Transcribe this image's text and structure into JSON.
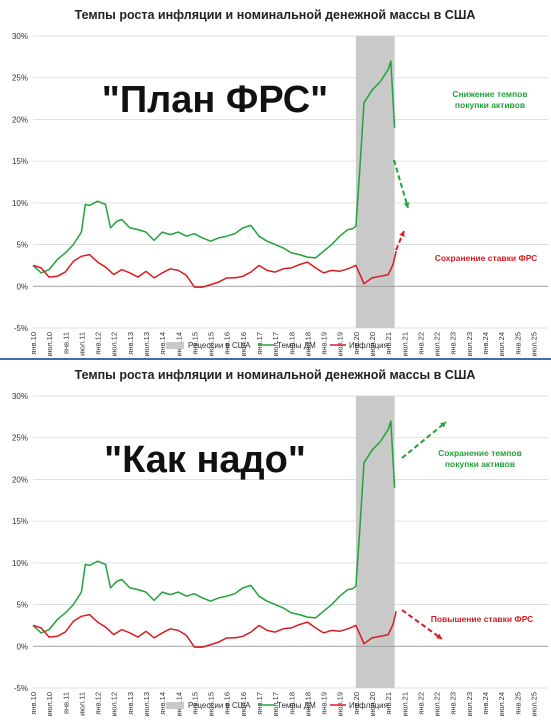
{
  "chart_data": [
    {
      "type": "line",
      "title": "Темпы роста инфляции и номинальной денежной массы в США",
      "overlay_title": "\"План ФРС\"",
      "ylim": [
        -5,
        30
      ],
      "y_ticks": [
        "-5%",
        "0%",
        "5%",
        "10%",
        "15%",
        "20%",
        "25%",
        "30%"
      ],
      "x_ticks": [
        "янв.10",
        "июл.10",
        "янв.11",
        "июл.11",
        "янв.12",
        "июл.12",
        "янв.13",
        "июл.13",
        "янв.14",
        "июл.14",
        "янв.15",
        "июл.15",
        "янв.16",
        "июл.16",
        "янв.17",
        "июл.17",
        "янв.18",
        "июл.18",
        "янв.19",
        "июл.19",
        "янв.20",
        "июл.20",
        "янв.21",
        "июл.21",
        "янв.22",
        "июл.22",
        "янв.23",
        "июл.23",
        "янв.24",
        "июл.24",
        "янв.25",
        "июл.25"
      ],
      "legend": [
        "Рецессии в США",
        "Темпы ДМ",
        "Инфляция"
      ],
      "legend_position": "bottom",
      "recession": {
        "start": 2020.0,
        "end": 2021.2
      },
      "series": [
        {
          "name": "Темпы ДМ",
          "color": "#22a33a",
          "points": [
            [
              2010.0,
              2.5
            ],
            [
              2010.25,
              1.6
            ],
            [
              2010.5,
              2.0
            ],
            [
              2010.75,
              3.2
            ],
            [
              2011.0,
              4.0
            ],
            [
              2011.25,
              5.0
            ],
            [
              2011.5,
              6.5
            ],
            [
              2011.62,
              9.8
            ],
            [
              2011.75,
              9.7
            ],
            [
              2012.0,
              10.2
            ],
            [
              2012.25,
              9.8
            ],
            [
              2012.4,
              7.0
            ],
            [
              2012.6,
              7.8
            ],
            [
              2012.75,
              8.0
            ],
            [
              2013.0,
              7.0
            ],
            [
              2013.25,
              6.8
            ],
            [
              2013.5,
              6.5
            ],
            [
              2013.75,
              5.5
            ],
            [
              2014.0,
              6.5
            ],
            [
              2014.25,
              6.2
            ],
            [
              2014.5,
              6.5
            ],
            [
              2014.75,
              6.0
            ],
            [
              2015.0,
              6.3
            ],
            [
              2015.25,
              5.8
            ],
            [
              2015.5,
              5.4
            ],
            [
              2015.75,
              5.8
            ],
            [
              2016.0,
              6.0
            ],
            [
              2016.25,
              6.3
            ],
            [
              2016.5,
              7.0
            ],
            [
              2016.75,
              7.3
            ],
            [
              2017.0,
              6.0
            ],
            [
              2017.25,
              5.4
            ],
            [
              2017.5,
              5.0
            ],
            [
              2017.75,
              4.6
            ],
            [
              2018.0,
              4.0
            ],
            [
              2018.25,
              3.8
            ],
            [
              2018.5,
              3.5
            ],
            [
              2018.75,
              3.4
            ],
            [
              2019.0,
              4.2
            ],
            [
              2019.25,
              5.0
            ],
            [
              2019.5,
              6.0
            ],
            [
              2019.75,
              6.8
            ],
            [
              2019.9,
              6.9
            ],
            [
              2020.0,
              7.2
            ],
            [
              2020.12,
              14.0
            ],
            [
              2020.25,
              22.0
            ],
            [
              2020.5,
              23.5
            ],
            [
              2020.75,
              24.5
            ],
            [
              2021.0,
              26.0
            ],
            [
              2021.08,
              27.0
            ],
            [
              2021.2,
              19.0
            ]
          ]
        },
        {
          "name": "Инфляция",
          "color": "#d91c22",
          "points": [
            [
              2010.0,
              2.5
            ],
            [
              2010.25,
              2.2
            ],
            [
              2010.5,
              1.1
            ],
            [
              2010.75,
              1.2
            ],
            [
              2011.0,
              1.7
            ],
            [
              2011.25,
              3.0
            ],
            [
              2011.5,
              3.6
            ],
            [
              2011.75,
              3.8
            ],
            [
              2012.0,
              2.9
            ],
            [
              2012.25,
              2.3
            ],
            [
              2012.5,
              1.4
            ],
            [
              2012.75,
              2.0
            ],
            [
              2013.0,
              1.6
            ],
            [
              2013.25,
              1.1
            ],
            [
              2013.5,
              1.8
            ],
            [
              2013.75,
              1.0
            ],
            [
              2014.0,
              1.6
            ],
            [
              2014.25,
              2.1
            ],
            [
              2014.5,
              1.9
            ],
            [
              2014.75,
              1.3
            ],
            [
              2015.0,
              -0.1
            ],
            [
              2015.25,
              -0.1
            ],
            [
              2015.5,
              0.2
            ],
            [
              2015.75,
              0.5
            ],
            [
              2016.0,
              1.0
            ],
            [
              2016.25,
              1.0
            ],
            [
              2016.5,
              1.2
            ],
            [
              2016.75,
              1.7
            ],
            [
              2017.0,
              2.5
            ],
            [
              2017.25,
              1.9
            ],
            [
              2017.5,
              1.7
            ],
            [
              2017.75,
              2.1
            ],
            [
              2018.0,
              2.2
            ],
            [
              2018.25,
              2.6
            ],
            [
              2018.5,
              2.9
            ],
            [
              2018.75,
              2.2
            ],
            [
              2019.0,
              1.6
            ],
            [
              2019.25,
              1.9
            ],
            [
              2019.5,
              1.8
            ],
            [
              2019.75,
              2.1
            ],
            [
              2020.0,
              2.5
            ],
            [
              2020.25,
              0.3
            ],
            [
              2020.5,
              1.0
            ],
            [
              2020.75,
              1.2
            ],
            [
              2021.0,
              1.4
            ],
            [
              2021.15,
              2.6
            ],
            [
              2021.25,
              4.2
            ]
          ]
        }
      ],
      "annotations": [
        {
          "text": "Снижение темпов покупки активов",
          "color": "#22a33a"
        },
        {
          "text": "Сохранение ставки ФРС",
          "color": "#d91c22"
        }
      ]
    },
    {
      "type": "line",
      "title": "Темпы роста инфляции и номинальной денежной массы в США",
      "overlay_title": "\"Как надо\"",
      "ylim": [
        -5,
        30
      ],
      "y_ticks": [
        "-5%",
        "0%",
        "5%",
        "10%",
        "15%",
        "20%",
        "25%",
        "30%"
      ],
      "x_ticks": [
        "янв.10",
        "июл.10",
        "янв.11",
        "июл.11",
        "янв.12",
        "июл.12",
        "янв.13",
        "июл.13",
        "янв.14",
        "июл.14",
        "янв.15",
        "июл.15",
        "янв.16",
        "июл.16",
        "янв.17",
        "июл.17",
        "янв.18",
        "июл.18",
        "янв.19",
        "июл.19",
        "янв.20",
        "июл.20",
        "янв.21",
        "июл.21",
        "янв.22",
        "июл.22",
        "янв.23",
        "июл.23",
        "янв.24",
        "июл.24",
        "янв.25",
        "июл.25"
      ],
      "legend": [
        "Рецессии в США",
        "Темпы ДМ",
        "Инфляция"
      ],
      "legend_position": "bottom",
      "recession": {
        "start": 2020.0,
        "end": 2021.2
      },
      "series": [
        {
          "name": "Темпы ДМ",
          "color": "#22a33a",
          "points": [
            [
              2010.0,
              2.5
            ],
            [
              2010.25,
              1.6
            ],
            [
              2010.5,
              2.0
            ],
            [
              2010.75,
              3.2
            ],
            [
              2011.0,
              4.0
            ],
            [
              2011.25,
              5.0
            ],
            [
              2011.5,
              6.5
            ],
            [
              2011.62,
              9.8
            ],
            [
              2011.75,
              9.7
            ],
            [
              2012.0,
              10.2
            ],
            [
              2012.25,
              9.8
            ],
            [
              2012.4,
              7.0
            ],
            [
              2012.6,
              7.8
            ],
            [
              2012.75,
              8.0
            ],
            [
              2013.0,
              7.0
            ],
            [
              2013.25,
              6.8
            ],
            [
              2013.5,
              6.5
            ],
            [
              2013.75,
              5.5
            ],
            [
              2014.0,
              6.5
            ],
            [
              2014.25,
              6.2
            ],
            [
              2014.5,
              6.5
            ],
            [
              2014.75,
              6.0
            ],
            [
              2015.0,
              6.3
            ],
            [
              2015.25,
              5.8
            ],
            [
              2015.5,
              5.4
            ],
            [
              2015.75,
              5.8
            ],
            [
              2016.0,
              6.0
            ],
            [
              2016.25,
              6.3
            ],
            [
              2016.5,
              7.0
            ],
            [
              2016.75,
              7.3
            ],
            [
              2017.0,
              6.0
            ],
            [
              2017.25,
              5.4
            ],
            [
              2017.5,
              5.0
            ],
            [
              2017.75,
              4.6
            ],
            [
              2018.0,
              4.0
            ],
            [
              2018.25,
              3.8
            ],
            [
              2018.5,
              3.5
            ],
            [
              2018.75,
              3.4
            ],
            [
              2019.0,
              4.2
            ],
            [
              2019.25,
              5.0
            ],
            [
              2019.5,
              6.0
            ],
            [
              2019.75,
              6.8
            ],
            [
              2019.9,
              6.9
            ],
            [
              2020.0,
              7.2
            ],
            [
              2020.12,
              14.0
            ],
            [
              2020.25,
              22.0
            ],
            [
              2020.5,
              23.5
            ],
            [
              2020.75,
              24.5
            ],
            [
              2021.0,
              26.0
            ],
            [
              2021.08,
              27.0
            ],
            [
              2021.2,
              19.0
            ]
          ]
        },
        {
          "name": "Инфляция",
          "color": "#d91c22",
          "points": [
            [
              2010.0,
              2.5
            ],
            [
              2010.25,
              2.2
            ],
            [
              2010.5,
              1.1
            ],
            [
              2010.75,
              1.2
            ],
            [
              2011.0,
              1.7
            ],
            [
              2011.25,
              3.0
            ],
            [
              2011.5,
              3.6
            ],
            [
              2011.75,
              3.8
            ],
            [
              2012.0,
              2.9
            ],
            [
              2012.25,
              2.3
            ],
            [
              2012.5,
              1.4
            ],
            [
              2012.75,
              2.0
            ],
            [
              2013.0,
              1.6
            ],
            [
              2013.25,
              1.1
            ],
            [
              2013.5,
              1.8
            ],
            [
              2013.75,
              1.0
            ],
            [
              2014.0,
              1.6
            ],
            [
              2014.25,
              2.1
            ],
            [
              2014.5,
              1.9
            ],
            [
              2014.75,
              1.3
            ],
            [
              2015.0,
              -0.1
            ],
            [
              2015.25,
              -0.1
            ],
            [
              2015.5,
              0.2
            ],
            [
              2015.75,
              0.5
            ],
            [
              2016.0,
              1.0
            ],
            [
              2016.25,
              1.0
            ],
            [
              2016.5,
              1.2
            ],
            [
              2016.75,
              1.7
            ],
            [
              2017.0,
              2.5
            ],
            [
              2017.25,
              1.9
            ],
            [
              2017.5,
              1.7
            ],
            [
              2017.75,
              2.1
            ],
            [
              2018.0,
              2.2
            ],
            [
              2018.25,
              2.6
            ],
            [
              2018.5,
              2.9
            ],
            [
              2018.75,
              2.2
            ],
            [
              2019.0,
              1.6
            ],
            [
              2019.25,
              1.9
            ],
            [
              2019.5,
              1.8
            ],
            [
              2019.75,
              2.1
            ],
            [
              2020.0,
              2.5
            ],
            [
              2020.25,
              0.3
            ],
            [
              2020.5,
              1.0
            ],
            [
              2020.75,
              1.2
            ],
            [
              2021.0,
              1.4
            ],
            [
              2021.15,
              2.6
            ],
            [
              2021.25,
              4.2
            ]
          ]
        }
      ],
      "annotations": [
        {
          "text": "Сохранение темпов покупки активов",
          "color": "#22a33a"
        },
        {
          "text": "Повышение ставки ФРС",
          "color": "#d91c22"
        }
      ]
    }
  ]
}
